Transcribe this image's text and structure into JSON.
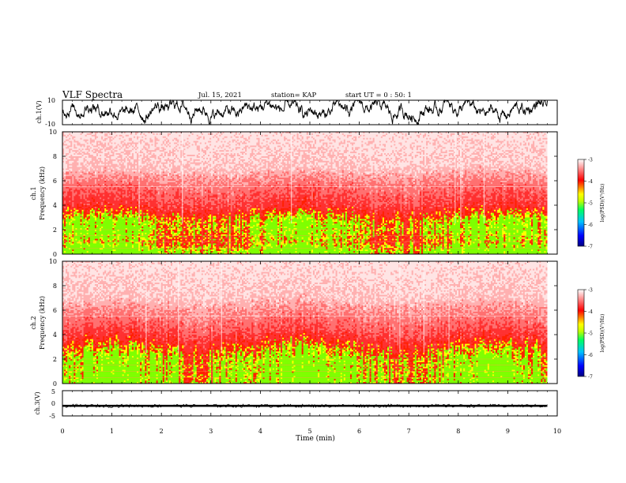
{
  "header": {
    "title": "VLF Spectra",
    "date": "Jul. 15, 2021",
    "station": "station= KAP",
    "start": "start UT =  0 : 50: 1"
  },
  "chart_data": [
    {
      "type": "line",
      "name": "ch1-waveform",
      "ylabel": "ch.1(V)",
      "ylim": [
        -10,
        10
      ],
      "yticks": [
        "10",
        "-10"
      ],
      "xlim": [
        0,
        10
      ],
      "note_values": "noisy waveform roughly between -8 and 10 V over 0-9.8 min"
    },
    {
      "type": "heatmap",
      "name": "ch1-spectrogram",
      "ylabel": "ch.1",
      "ylabel2": "Frequency (kHz)",
      "ylim": [
        0,
        10
      ],
      "yticks": [
        "0",
        "2",
        "4",
        "6",
        "8",
        "10"
      ],
      "xlim": [
        0,
        10
      ],
      "data_end_min": 9.8,
      "band_profile": [
        {
          "f": 0.3,
          "level": 1.0
        },
        {
          "f": 1.0,
          "level": 0.85
        },
        {
          "f": 2.0,
          "level": 0.95
        },
        {
          "f": 2.8,
          "level": 0.9
        },
        {
          "f": 4.0,
          "level": 0.62
        },
        {
          "f": 5.5,
          "level": 0.45
        },
        {
          "f": 7.0,
          "level": 0.2
        },
        {
          "f": 10.0,
          "level": 0.1
        }
      ],
      "colorbar": {
        "label": "log(PSD)(V²/Hz)",
        "min": -7,
        "max": -3,
        "ticks": [
          "-3",
          "-4",
          "-5",
          "-6",
          "-7"
        ]
      }
    },
    {
      "type": "heatmap",
      "name": "ch2-spectrogram",
      "ylabel": "ch.2",
      "ylabel2": "Frequency (kHz)",
      "ylim": [
        0,
        10
      ],
      "yticks": [
        "0",
        "2",
        "4",
        "6",
        "8",
        "10"
      ],
      "xlim": [
        0,
        10
      ],
      "data_end_min": 9.8,
      "band_profile": [
        {
          "f": 0.3,
          "level": 1.0
        },
        {
          "f": 1.2,
          "level": 0.97
        },
        {
          "f": 2.0,
          "level": 0.95
        },
        {
          "f": 3.0,
          "level": 0.8
        },
        {
          "f": 4.0,
          "level": 0.6
        },
        {
          "f": 5.5,
          "level": 0.4
        },
        {
          "f": 7.0,
          "level": 0.2
        },
        {
          "f": 10.0,
          "level": 0.1
        }
      ],
      "colorbar": {
        "label": "log(PSD)(V²/Hz)",
        "min": -7,
        "max": -3,
        "ticks": [
          "-3",
          "-4",
          "-5",
          "-6",
          "-7"
        ]
      }
    },
    {
      "type": "line",
      "name": "ch3-waveform",
      "ylabel": "ch.3(V)",
      "ylim": [
        -5,
        5
      ],
      "yticks": [
        "5",
        "0",
        "-5"
      ],
      "xlim": [
        0,
        10
      ],
      "note_values": "thin dense band near -1 V over 0-9.8 min"
    }
  ],
  "xaxis": {
    "label": "Time (min)",
    "ticks": [
      "0",
      "1",
      "2",
      "3",
      "4",
      "5",
      "6",
      "7",
      "8",
      "9",
      "10"
    ]
  },
  "colors": {
    "spec_low": "#ffffff",
    "spec_mid": "#ff0000",
    "spec_high_green": "#00ff00",
    "spec_yellow": "#ffff00",
    "colormap": [
      "#000080",
      "#0000ff",
      "#00c0ff",
      "#00ff60",
      "#c0ff00",
      "#ffff00",
      "#ff8000",
      "#ff0000",
      "#ff8080",
      "#ffffff"
    ]
  }
}
